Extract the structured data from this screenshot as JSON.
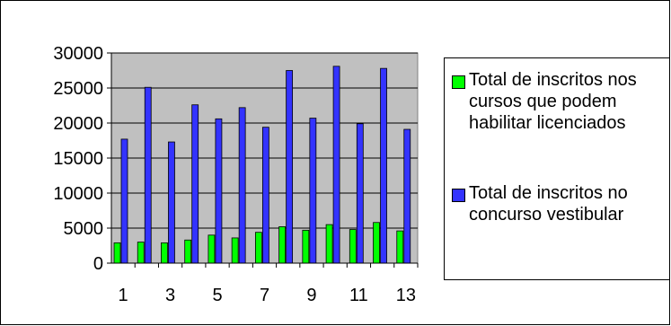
{
  "chart_data": {
    "type": "bar",
    "title": "",
    "xlabel": "",
    "ylabel": "",
    "categories": [
      "1",
      "2",
      "3",
      "4",
      "5",
      "6",
      "7",
      "8",
      "9",
      "10",
      "11",
      "12",
      "13"
    ],
    "x_tick_labels": [
      "1",
      "3",
      "5",
      "7",
      "9",
      "11",
      "13"
    ],
    "y_ticks": [
      0,
      5000,
      10000,
      15000,
      20000,
      25000,
      30000
    ],
    "ylim": [
      0,
      30000
    ],
    "grid": true,
    "legend_position": "right",
    "plot_background": "#c0c0c0",
    "series": [
      {
        "name": "Total de inscritos nos cursos que podem habilitar licenciados",
        "color": "#00ff00",
        "values": [
          2900,
          3000,
          2900,
          3300,
          4000,
          3600,
          4400,
          5200,
          4700,
          5500,
          4800,
          5800,
          4600
        ]
      },
      {
        "name": "Total de inscritos no concurso vestibular",
        "color": "#3333ff",
        "values": [
          17700,
          25100,
          17300,
          22600,
          20600,
          22200,
          19400,
          27500,
          20700,
          28100,
          19900,
          27800,
          19100
        ]
      }
    ]
  }
}
